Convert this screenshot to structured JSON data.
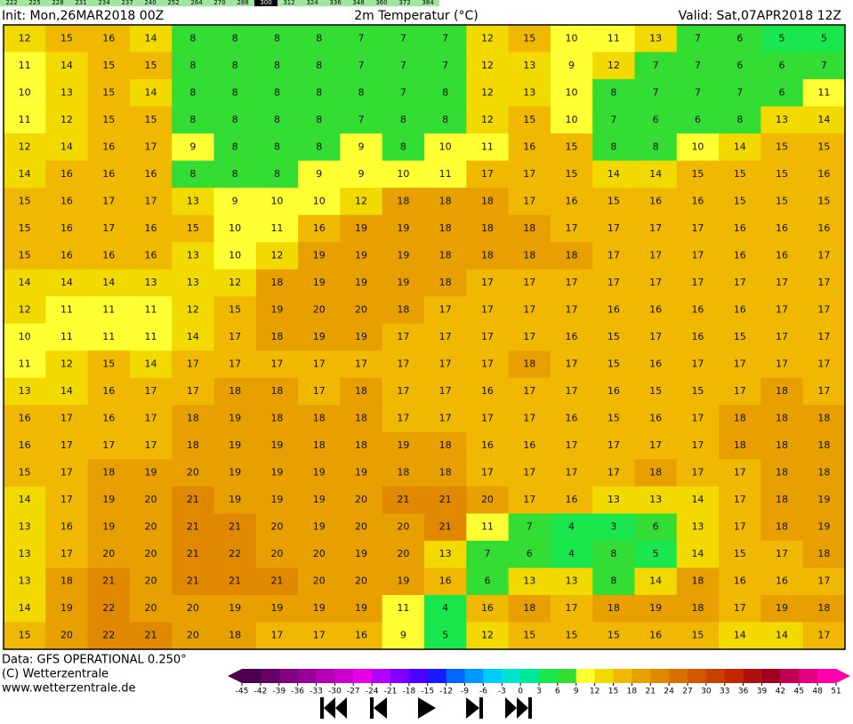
{
  "header": {
    "init": "Init: Mon,26MAR2018 00Z",
    "title": "2m Temperatur (°C)",
    "valid": "Valid: Sat,07APR2018 12Z"
  },
  "top_scale": {
    "values": [
      222,
      225,
      228,
      231,
      234,
      237,
      240,
      252,
      264,
      270,
      288,
      300,
      312,
      324,
      336,
      348,
      360,
      372,
      384
    ],
    "highlight": 300
  },
  "map": {
    "rows": [
      [
        12,
        15,
        16,
        14,
        8,
        8,
        8,
        8,
        7,
        7,
        7,
        12,
        15,
        10,
        11,
        13,
        7,
        6,
        5,
        5
      ],
      [
        11,
        14,
        15,
        15,
        8,
        8,
        8,
        8,
        7,
        7,
        7,
        12,
        13,
        9,
        12,
        7,
        7,
        6,
        6,
        7
      ],
      [
        10,
        13,
        15,
        14,
        8,
        8,
        8,
        8,
        8,
        7,
        8,
        12,
        13,
        10,
        8,
        7,
        7,
        7,
        6,
        11
      ],
      [
        11,
        12,
        15,
        15,
        8,
        8,
        8,
        8,
        7,
        8,
        8,
        12,
        15,
        10,
        7,
        6,
        6,
        8,
        13,
        14
      ],
      [
        12,
        14,
        16,
        17,
        9,
        8,
        8,
        8,
        9,
        8,
        10,
        11,
        16,
        15,
        8,
        8,
        10,
        14,
        15,
        15
      ],
      [
        14,
        16,
        16,
        16,
        8,
        8,
        8,
        9,
        9,
        10,
        11,
        17,
        17,
        15,
        14,
        14,
        15,
        15,
        15,
        16
      ],
      [
        15,
        16,
        17,
        17,
        13,
        9,
        10,
        10,
        12,
        18,
        18,
        18,
        17,
        16,
        15,
        16,
        16,
        15,
        15,
        15
      ],
      [
        15,
        16,
        17,
        16,
        15,
        10,
        11,
        16,
        19,
        19,
        18,
        18,
        18,
        17,
        17,
        17,
        17,
        16,
        16,
        16
      ],
      [
        15,
        16,
        16,
        16,
        13,
        10,
        12,
        19,
        19,
        19,
        18,
        18,
        18,
        18,
        17,
        17,
        17,
        16,
        16,
        17
      ],
      [
        14,
        14,
        14,
        13,
        13,
        12,
        18,
        19,
        19,
        19,
        18,
        17,
        17,
        17,
        17,
        17,
        17,
        17,
        17,
        17
      ],
      [
        12,
        11,
        11,
        11,
        12,
        15,
        19,
        20,
        20,
        18,
        17,
        17,
        17,
        17,
        16,
        16,
        16,
        16,
        17,
        17
      ],
      [
        10,
        11,
        11,
        11,
        14,
        17,
        18,
        19,
        19,
        17,
        17,
        17,
        17,
        16,
        15,
        17,
        16,
        15,
        17,
        17
      ],
      [
        11,
        12,
        15,
        14,
        17,
        17,
        17,
        17,
        17,
        17,
        17,
        17,
        18,
        17,
        15,
        16,
        17,
        17,
        17,
        17
      ],
      [
        13,
        14,
        16,
        17,
        17,
        18,
        18,
        17,
        18,
        17,
        17,
        16,
        17,
        17,
        16,
        15,
        15,
        17,
        18,
        17
      ],
      [
        16,
        17,
        16,
        17,
        18,
        19,
        18,
        18,
        18,
        17,
        17,
        17,
        17,
        16,
        15,
        16,
        17,
        18,
        18,
        18
      ],
      [
        16,
        17,
        17,
        17,
        18,
        19,
        19,
        18,
        18,
        19,
        18,
        16,
        16,
        17,
        17,
        17,
        17,
        18,
        18,
        18
      ],
      [
        15,
        17,
        18,
        19,
        20,
        19,
        19,
        19,
        19,
        18,
        18,
        17,
        17,
        17,
        17,
        18,
        17,
        17,
        18,
        18
      ],
      [
        14,
        17,
        19,
        20,
        21,
        19,
        19,
        19,
        20,
        21,
        21,
        20,
        17,
        16,
        13,
        13,
        14,
        17,
        18,
        19
      ],
      [
        13,
        16,
        19,
        20,
        21,
        21,
        20,
        19,
        20,
        20,
        21,
        11,
        7,
        4,
        3,
        6,
        13,
        17,
        18,
        19
      ],
      [
        13,
        17,
        20,
        20,
        21,
        22,
        20,
        20,
        19,
        20,
        13,
        7,
        6,
        4,
        8,
        5,
        14,
        15,
        17,
        18
      ],
      [
        13,
        18,
        21,
        20,
        21,
        21,
        21,
        20,
        20,
        19,
        16,
        6,
        13,
        13,
        8,
        14,
        18,
        16,
        16,
        17
      ],
      [
        14,
        19,
        22,
        20,
        20,
        19,
        19,
        19,
        19,
        11,
        4,
        16,
        18,
        17,
        18,
        19,
        18,
        17,
        19,
        18
      ],
      [
        15,
        20,
        22,
        21,
        20,
        18,
        17,
        17,
        16,
        9,
        5,
        12,
        15,
        15,
        15,
        16,
        15,
        14,
        14,
        17
      ]
    ],
    "colorbar": {
      "ticks": [
        -45,
        -42,
        -39,
        -36,
        -33,
        -30,
        -27,
        -24,
        -21,
        -18,
        -15,
        -12,
        -9,
        -6,
        -3,
        0,
        3,
        6,
        9,
        12,
        15,
        18,
        21,
        24,
        27,
        30,
        33,
        36,
        39,
        42,
        45,
        48,
        51
      ],
      "colors": [
        "#4d004d",
        "#660066",
        "#800080",
        "#990099",
        "#b300b3",
        "#cc00cc",
        "#e600e6",
        "#b300ff",
        "#8000ff",
        "#4d00ff",
        "#1a1aff",
        "#0066ff",
        "#0099ff",
        "#00ccff",
        "#00e6cc",
        "#00e699",
        "#1ae64d",
        "#33dd33",
        "#ffff33",
        "#f2d900",
        "#f0b800",
        "#e8a000",
        "#e08800",
        "#d87000",
        "#d05800",
        "#c84000",
        "#c02800",
        "#b01010",
        "#a00020",
        "#c00050",
        "#e00080",
        "#ff00aa"
      ]
    }
  },
  "footer": {
    "data": "Data: GFS OPERATIONAL 0.250°",
    "copyright": "(C) Wetterzentrale",
    "url": "www.wetterzentrale.de"
  }
}
